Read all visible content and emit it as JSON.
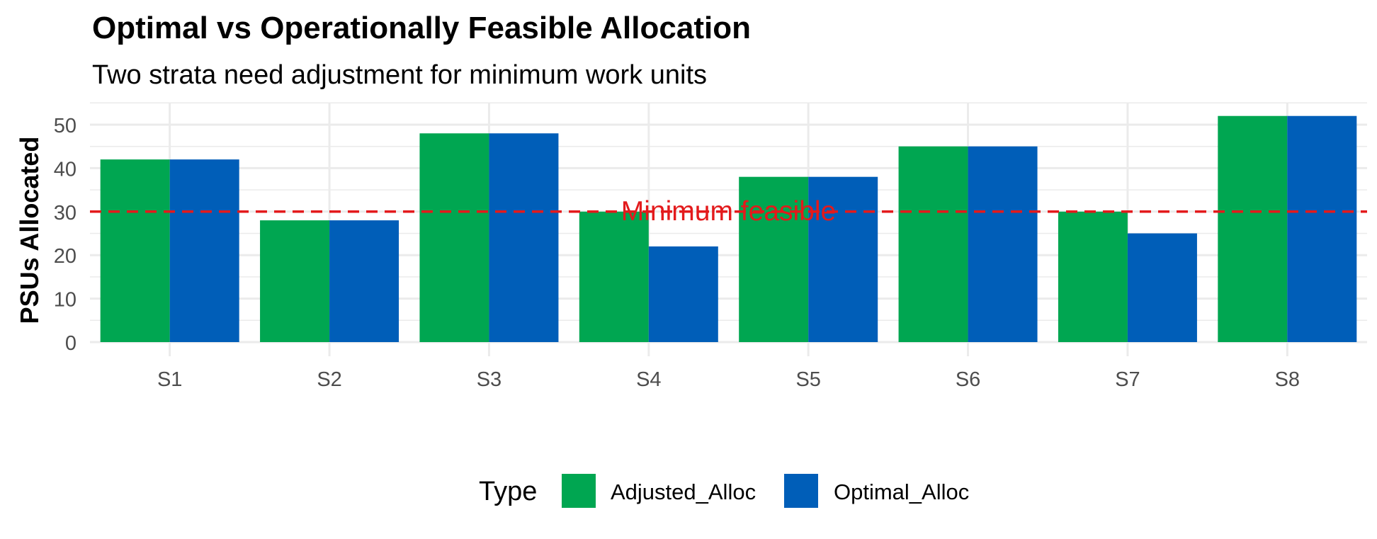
{
  "chart_data": {
    "type": "bar",
    "title": "Optimal vs Operationally Feasible Allocation",
    "subtitle": "Two strata need adjustment for minimum work units",
    "xlabel": "",
    "ylabel": "PSUs Allocated",
    "categories": [
      "S1",
      "S2",
      "S3",
      "S4",
      "S5",
      "S6",
      "S7",
      "S8"
    ],
    "series": [
      {
        "name": "Adjusted_Alloc",
        "color": "#00A651",
        "values": [
          42,
          28,
          48,
          30,
          38,
          45,
          30,
          52
        ]
      },
      {
        "name": "Optimal_Alloc",
        "color": "#005EB8",
        "values": [
          42,
          28,
          48,
          22,
          38,
          45,
          25,
          52
        ]
      }
    ],
    "ylim": [
      0,
      55
    ],
    "yticks": [
      0,
      10,
      20,
      30,
      40,
      50
    ],
    "grid": true,
    "reference_line": {
      "value": 30,
      "label": "Minimum feasible",
      "color": "#E31A1C",
      "style": "dashed"
    },
    "legend": {
      "title": "Type",
      "position": "bottom"
    }
  }
}
